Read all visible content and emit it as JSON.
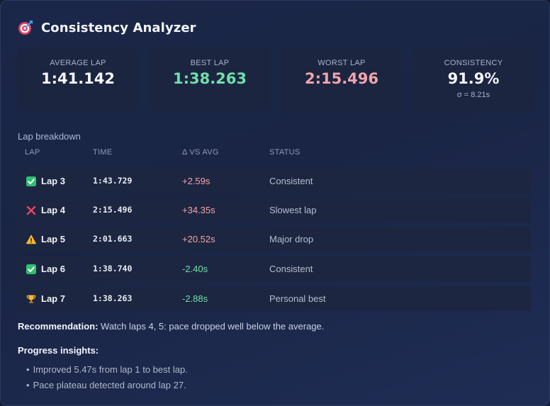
{
  "header": {
    "title": "Consistency Analyzer",
    "icon": "target-icon"
  },
  "stats": [
    {
      "label": "AVERAGE LAP",
      "value": "1:41.142",
      "color": "#f4f6fb"
    },
    {
      "label": "BEST LAP",
      "value": "1:38.263",
      "color": "#6ee0aa"
    },
    {
      "label": "WORST LAP",
      "value": "2:15.496",
      "color": "#f2a3ad"
    },
    {
      "label": "CONSISTENCY",
      "value": "91.9%",
      "sub": "σ = 8.21s",
      "color": "#f4f6fb"
    }
  ],
  "breakdown": {
    "label": "Lap breakdown",
    "columns": [
      "LAP",
      "TIME",
      "Δ VS AVG",
      "STATUS"
    ],
    "rows": [
      {
        "icon": "check-icon",
        "lap": "Lap 3",
        "time": "1:43.729",
        "delta": "+2.59s",
        "status": "Consistent"
      },
      {
        "icon": "cross-icon",
        "lap": "Lap 4",
        "time": "2:15.496",
        "delta": "+34.35s",
        "status": "Slowest lap"
      },
      {
        "icon": "warning-icon",
        "lap": "Lap 5",
        "time": "2:01.663",
        "delta": "+20.52s",
        "status": "Major drop"
      },
      {
        "icon": "check-icon",
        "lap": "Lap 6",
        "time": "1:38.740",
        "delta": "-2.40s",
        "status": "Consistent"
      },
      {
        "icon": "trophy-icon",
        "lap": "Lap 7",
        "time": "1:38.263",
        "delta": "-2.88s",
        "status": "Personal best"
      }
    ]
  },
  "recommendation": {
    "label": "Recommendation:",
    "text": "Watch laps 4, 5: pace dropped well below the average."
  },
  "insights": {
    "title": "Progress insights:",
    "items": [
      "Improved 5.47s from lap 1 to best lap.",
      "Pace plateau detected around lap 27."
    ]
  },
  "colors": {
    "positive": "#6ee0aa",
    "negative": "#f2a3ad",
    "accent": "#3fa7ff"
  }
}
